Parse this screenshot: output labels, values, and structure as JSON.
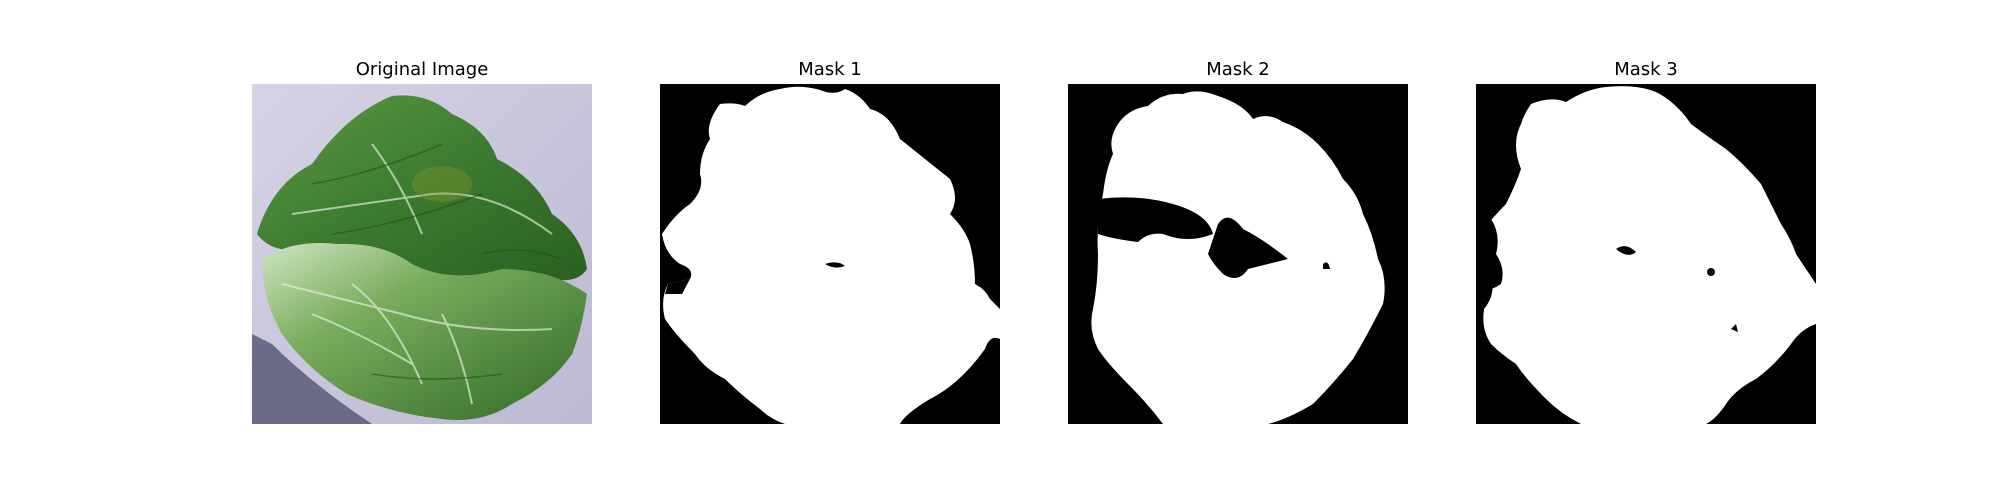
{
  "figure": {
    "panels": [
      {
        "title": "Original Image",
        "kind": "photo",
        "subject": "green leafy vegetable"
      },
      {
        "title": "Mask 1",
        "kind": "binary-mask"
      },
      {
        "title": "Mask 2",
        "kind": "binary-mask"
      },
      {
        "title": "Mask 3",
        "kind": "binary-mask"
      }
    ]
  },
  "colors": {
    "mask_foreground": "#ffffff",
    "mask_background": "#000000",
    "leaf_dark": "#2e6a26",
    "leaf_mid": "#4f8f3c",
    "leaf_light": "#a9cf8f",
    "surface": "#c9c6dc"
  }
}
